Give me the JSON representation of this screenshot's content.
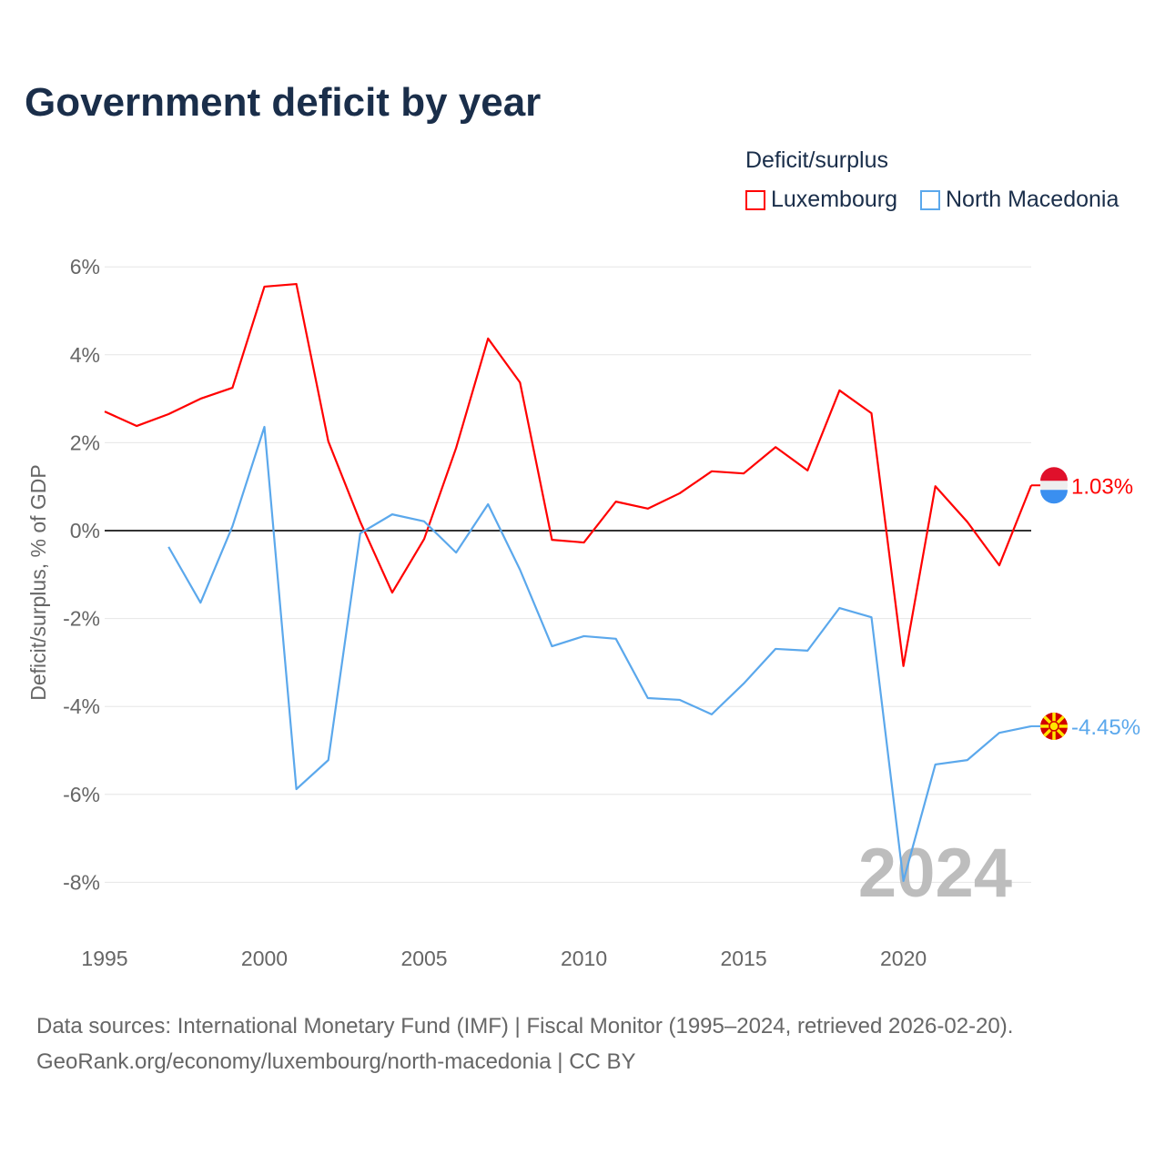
{
  "title": "Government deficit by year",
  "legend": {
    "title": "Deficit/surplus",
    "items": [
      {
        "name": "Luxembourg",
        "color": "#ff0000"
      },
      {
        "name": "North Macedonia",
        "color": "#5ba8ec"
      }
    ]
  },
  "source": {
    "line1": "Data sources: International Monetary Fund (IMF) | Fiscal Monitor (1995–2024, retrieved 2026-02-20).",
    "line2": "GeoRank.org/economy/luxembourg/north-macedonia | CC BY"
  },
  "chart_data": {
    "type": "line",
    "title": "Government deficit by year",
    "xlabel": "",
    "ylabel": "Deficit/surplus, % of GDP",
    "xlim": [
      1995,
      2024
    ],
    "ylim": [
      -9,
      6.5
    ],
    "xticks": [
      1995,
      2000,
      2005,
      2010,
      2015,
      2020
    ],
    "yticks": [
      {
        "v": 6,
        "label": "6%"
      },
      {
        "v": 4,
        "label": "4%"
      },
      {
        "v": 2,
        "label": "2%"
      },
      {
        "v": 0,
        "label": "0%"
      },
      {
        "v": -2,
        "label": "-2%"
      },
      {
        "v": -4,
        "label": "-4%"
      },
      {
        "v": -6,
        "label": "-6%"
      },
      {
        "v": -8,
        "label": "-8%"
      }
    ],
    "watermark": "2024",
    "series": [
      {
        "name": "Luxembourg",
        "color": "#ff0000",
        "end_label": "1.03%",
        "icon": "luxembourg-flag-icon",
        "x": [
          1995,
          1996,
          1997,
          1998,
          1999,
          2000,
          2001,
          2002,
          2003,
          2004,
          2005,
          2006,
          2007,
          2008,
          2009,
          2010,
          2011,
          2012,
          2013,
          2014,
          2015,
          2016,
          2017,
          2018,
          2019,
          2020,
          2021,
          2022,
          2023,
          2024
        ],
        "y": [
          2.71,
          2.38,
          2.65,
          3.0,
          3.25,
          5.55,
          5.61,
          2.03,
          0.2,
          -1.41,
          -0.19,
          1.88,
          4.37,
          3.37,
          -0.21,
          -0.27,
          0.66,
          0.5,
          0.85,
          1.35,
          1.3,
          1.9,
          1.37,
          3.19,
          2.67,
          -3.08,
          1.01,
          0.2,
          -0.79,
          1.03
        ]
      },
      {
        "name": "North Macedonia",
        "color": "#5ba8ec",
        "end_label": "-4.45%",
        "icon": "north-macedonia-flag-icon",
        "x": [
          1997,
          1998,
          1999,
          2000,
          2001,
          2002,
          2003,
          2004,
          2005,
          2006,
          2007,
          2008,
          2009,
          2010,
          2011,
          2012,
          2013,
          2014,
          2015,
          2016,
          2017,
          2018,
          2019,
          2020,
          2021,
          2022,
          2023,
          2024
        ],
        "y": [
          -0.37,
          -1.64,
          0.1,
          2.36,
          -5.88,
          -5.22,
          -0.06,
          0.37,
          0.21,
          -0.5,
          0.6,
          -0.89,
          -2.63,
          -2.4,
          -2.46,
          -3.81,
          -3.85,
          -4.18,
          -3.48,
          -2.69,
          -2.73,
          -1.76,
          -1.97,
          -7.97,
          -5.32,
          -5.22,
          -4.6,
          -4.45
        ]
      }
    ]
  }
}
